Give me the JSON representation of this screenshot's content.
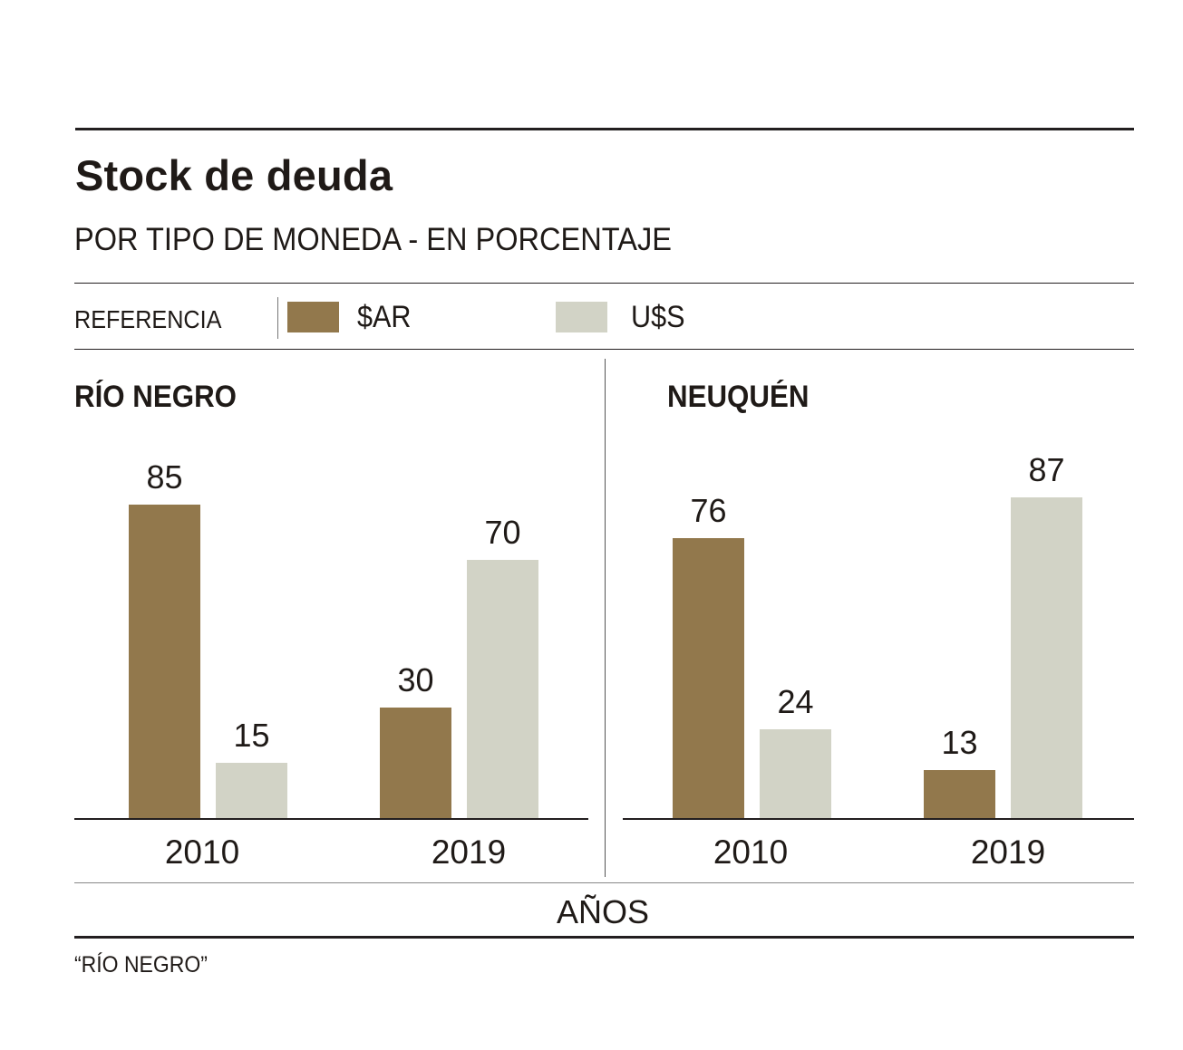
{
  "title": "Stock de deuda",
  "subtitle": "POR TIPO DE MONEDA - EN PORCENTAJE",
  "legend": {
    "label": "REFERENCIA",
    "items": [
      {
        "name": "$AR",
        "color": "#92784c"
      },
      {
        "name": "U$S",
        "color": "#d2d3c6"
      }
    ]
  },
  "x_axis_label": "AÑOS",
  "source": "“RÍO NEGRO”",
  "chart_data": [
    {
      "type": "bar",
      "title": "RÍO NEGRO",
      "categories": [
        "2010",
        "2019"
      ],
      "series": [
        {
          "name": "$AR",
          "color": "#92784c",
          "values": [
            85,
            30
          ]
        },
        {
          "name": "U$S",
          "color": "#d2d3c6",
          "values": [
            15,
            70
          ]
        }
      ],
      "xlabel": "AÑOS",
      "ylabel": "",
      "ylim": [
        0,
        100
      ],
      "grid": false,
      "legend": "top"
    },
    {
      "type": "bar",
      "title": "NEUQUÉN",
      "categories": [
        "2010",
        "2019"
      ],
      "series": [
        {
          "name": "$AR",
          "color": "#92784c",
          "values": [
            76,
            13
          ]
        },
        {
          "name": "U$S",
          "color": "#d2d3c6",
          "values": [
            24,
            87
          ]
        }
      ],
      "xlabel": "AÑOS",
      "ylabel": "",
      "ylim": [
        0,
        100
      ],
      "grid": false,
      "legend": "top"
    }
  ]
}
